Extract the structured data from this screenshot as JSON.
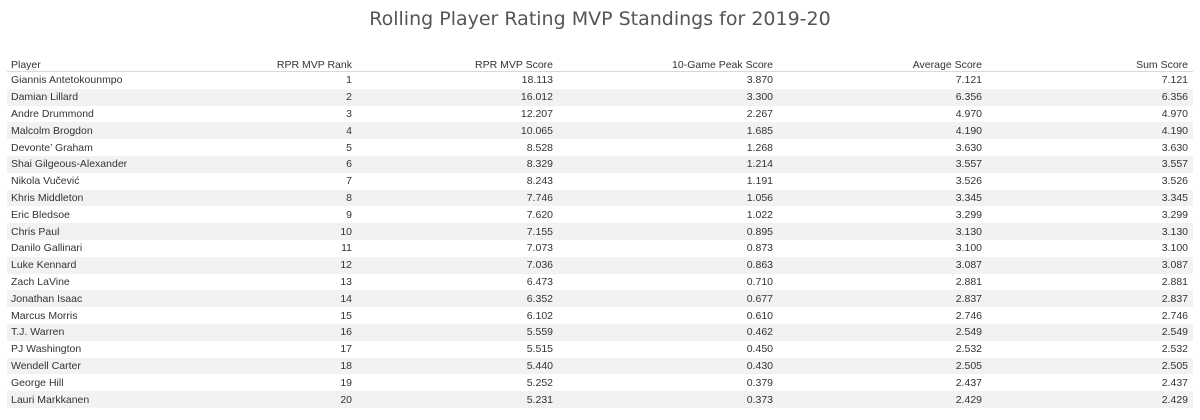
{
  "title": "Rolling Player Rating MVP Standings for 2019-20",
  "chart_data": {
    "type": "table",
    "title": "Rolling Player Rating MVP Standings for 2019-20",
    "columns": [
      "Player",
      "RPR MVP Rank",
      "RPR MVP Score",
      "10-Game Peak Score",
      "Average Score",
      "Sum Score"
    ],
    "rows": [
      [
        "Giannis Antetokounmpo",
        "1",
        "18.113",
        "3.870",
        "7.121",
        "7.121"
      ],
      [
        "Damian Lillard",
        "2",
        "16.012",
        "3.300",
        "6.356",
        "6.356"
      ],
      [
        "Andre Drummond",
        "3",
        "12.207",
        "2.267",
        "4.970",
        "4.970"
      ],
      [
        "Malcolm Brogdon",
        "4",
        "10.065",
        "1.685",
        "4.190",
        "4.190"
      ],
      [
        "Devonte’ Graham",
        "5",
        "8.528",
        "1.268",
        "3.630",
        "3.630"
      ],
      [
        "Shai Gilgeous-Alexander",
        "6",
        "8.329",
        "1.214",
        "3.557",
        "3.557"
      ],
      [
        "Nikola Vučević",
        "7",
        "8.243",
        "1.191",
        "3.526",
        "3.526"
      ],
      [
        "Khris Middleton",
        "8",
        "7.746",
        "1.056",
        "3.345",
        "3.345"
      ],
      [
        "Eric Bledsoe",
        "9",
        "7.620",
        "1.022",
        "3.299",
        "3.299"
      ],
      [
        "Chris Paul",
        "10",
        "7.155",
        "0.895",
        "3.130",
        "3.130"
      ],
      [
        "Danilo Gallinari",
        "11",
        "7.073",
        "0.873",
        "3.100",
        "3.100"
      ],
      [
        "Luke Kennard",
        "12",
        "7.036",
        "0.863",
        "3.087",
        "3.087"
      ],
      [
        "Zach LaVine",
        "13",
        "6.473",
        "0.710",
        "2.881",
        "2.881"
      ],
      [
        "Jonathan Isaac",
        "14",
        "6.352",
        "0.677",
        "2.837",
        "2.837"
      ],
      [
        "Marcus Morris",
        "15",
        "6.102",
        "0.610",
        "2.746",
        "2.746"
      ],
      [
        "T.J. Warren",
        "16",
        "5.559",
        "0.462",
        "2.549",
        "2.549"
      ],
      [
        "PJ Washington",
        "17",
        "5.515",
        "0.450",
        "2.532",
        "2.532"
      ],
      [
        "Wendell Carter",
        "18",
        "5.440",
        "0.430",
        "2.505",
        "2.505"
      ],
      [
        "George Hill",
        "19",
        "5.252",
        "0.379",
        "2.437",
        "2.437"
      ],
      [
        "Lauri Markkanen",
        "20",
        "5.231",
        "0.373",
        "2.429",
        "2.429"
      ]
    ]
  }
}
